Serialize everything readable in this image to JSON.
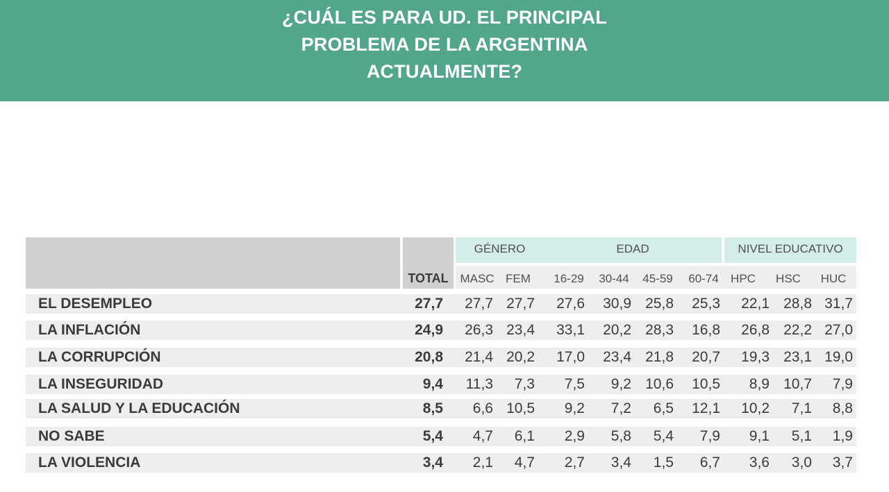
{
  "title_lines": [
    "¿CUÁL ES PARA UD. EL PRINCIPAL",
    "PROBLEMA DE LA ARGENTINA",
    "ACTUALMENTE?"
  ],
  "colors": {
    "banner": "#52a68b",
    "group_header": "#d4ede8",
    "row_band": "#eeeeee",
    "header_gray": "#d0d0d0"
  },
  "chart_data": {
    "type": "table",
    "title": "¿CUÁL ES PARA UD. EL PRINCIPAL PROBLEMA DE LA ARGENTINA ACTUALMENTE?",
    "total_label": "TOTAL",
    "groups": [
      {
        "name": "GÉNERO",
        "columns": [
          "MASC",
          "FEM"
        ]
      },
      {
        "name": "EDAD",
        "columns": [
          "16-29",
          "30-44",
          "45-59",
          "60-74"
        ]
      },
      {
        "name": "NIVEL EDUCATIVO",
        "columns": [
          "HPC",
          "HSC",
          "HUC"
        ]
      }
    ],
    "rows": [
      {
        "label": "EL DESEMPLEO",
        "total": "27,7",
        "values": [
          "27,7",
          "27,7",
          "27,6",
          "30,9",
          "25,8",
          "25,3",
          "22,1",
          "28,8",
          "31,7"
        ]
      },
      {
        "label": "LA INFLACIÓN",
        "total": "24,9",
        "values": [
          "26,3",
          "23,4",
          "33,1",
          "20,2",
          "28,3",
          "16,8",
          "26,8",
          "22,2",
          "27,0"
        ]
      },
      {
        "label": "LA CORRUPCIÓN",
        "total": "20,8",
        "values": [
          "21,4",
          "20,2",
          "17,0",
          "23,4",
          "21,8",
          "20,7",
          "19,3",
          "23,1",
          "19,0"
        ]
      },
      {
        "label": "LA INSEGURIDAD",
        "total": "9,4",
        "values": [
          "11,3",
          "7,3",
          "7,5",
          "9,2",
          "10,6",
          "10,5",
          "8,9",
          "10,7",
          "7,9"
        ]
      },
      {
        "label": "LA SALUD Y LA EDUCACIÓN",
        "total": "8,5",
        "values": [
          "6,6",
          "10,5",
          "9,2",
          "7,2",
          "6,5",
          "12,1",
          "10,2",
          "7,1",
          "8,8"
        ]
      },
      {
        "label": "NO SABE",
        "total": "5,4",
        "values": [
          "4,7",
          "6,1",
          "2,9",
          "5,8",
          "5,4",
          "7,9",
          "9,1",
          "5,1",
          "1,9"
        ]
      },
      {
        "label": "LA VIOLENCIA",
        "total": "3,4",
        "values": [
          "2,1",
          "4,7",
          "2,7",
          "3,4",
          "1,5",
          "6,7",
          "3,6",
          "3,0",
          "3,7"
        ]
      }
    ]
  }
}
